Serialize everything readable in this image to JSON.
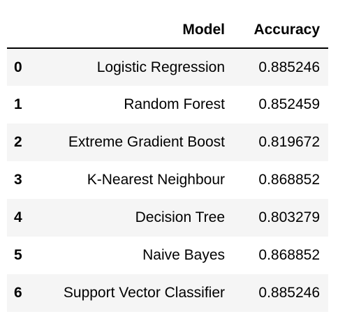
{
  "table": {
    "columns": {
      "model": "Model",
      "accuracy": "Accuracy"
    },
    "rows": [
      {
        "index": "0",
        "model": "Logistic Regression",
        "accuracy": "0.885246"
      },
      {
        "index": "1",
        "model": "Random Forest",
        "accuracy": "0.852459"
      },
      {
        "index": "2",
        "model": "Extreme Gradient Boost",
        "accuracy": "0.819672"
      },
      {
        "index": "3",
        "model": "K-Nearest Neighbour",
        "accuracy": "0.868852"
      },
      {
        "index": "4",
        "model": "Decision Tree",
        "accuracy": "0.803279"
      },
      {
        "index": "5",
        "model": "Naive Bayes",
        "accuracy": "0.868852"
      },
      {
        "index": "6",
        "model": "Support Vector Classifier",
        "accuracy": "0.885246"
      }
    ]
  }
}
